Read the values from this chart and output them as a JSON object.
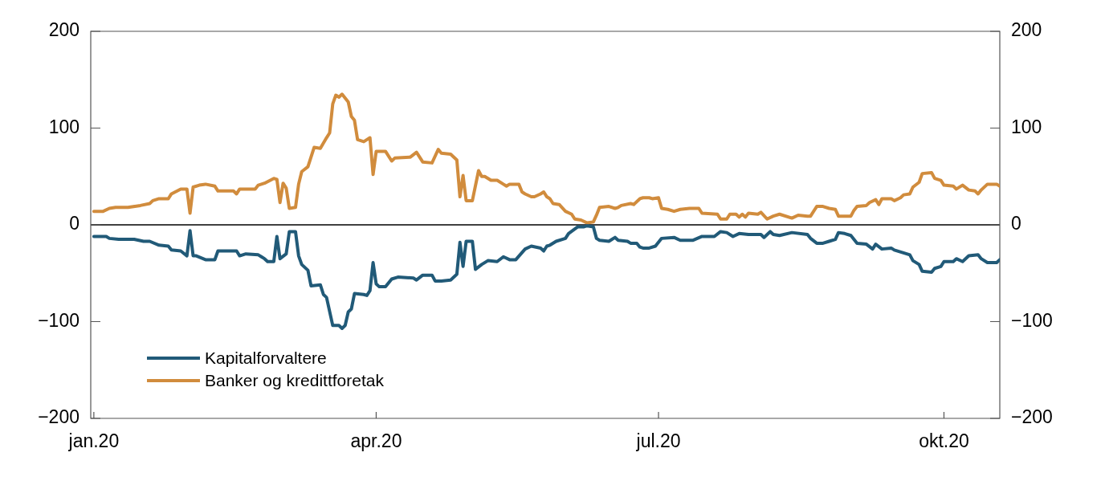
{
  "chart_data": {
    "type": "line",
    "xlim": [
      "2019-12-31",
      "2020-10-19"
    ],
    "xticks": [
      {
        "value": "2020-01-01",
        "label": "jan.20"
      },
      {
        "value": "2020-04-01",
        "label": "apr.20"
      },
      {
        "value": "2020-07-01",
        "label": "jul.20"
      },
      {
        "value": "2020-10-01",
        "label": "okt.20"
      }
    ],
    "ylim": [
      -200,
      200
    ],
    "yticks": [
      -200,
      -100,
      0,
      100,
      200
    ],
    "y2lim": [
      -200,
      200
    ],
    "y2ticks": [
      -200,
      -100,
      0,
      100,
      200
    ],
    "grid": false,
    "legend": "bottom left",
    "marker": "none",
    "line_style": "solid",
    "ref_lines": [
      {
        "axis": "y",
        "value": 0,
        "color": "#000000"
      }
    ],
    "series": [
      {
        "name": "Kapitalforvaltere",
        "color": "#215a78",
        "x": [
          "2020-01-01",
          "2020-01-05",
          "2020-01-06",
          "2020-01-09",
          "2020-01-14",
          "2020-01-17",
          "2020-01-19",
          "2020-01-22",
          "2020-01-25",
          "2020-01-26",
          "2020-01-29",
          "2020-01-31",
          "2020-02-01",
          "2020-02-02",
          "2020-02-03",
          "2020-02-06",
          "2020-02-09",
          "2020-02-10",
          "2020-02-16",
          "2020-02-17",
          "2020-02-19",
          "2020-02-23",
          "2020-02-24",
          "2020-02-25",
          "2020-02-26",
          "2020-02-28",
          "2020-02-29",
          "2020-03-01",
          "2020-03-03",
          "2020-03-04",
          "2020-03-06",
          "2020-03-07",
          "2020-03-08",
          "2020-03-10",
          "2020-03-11",
          "2020-03-14",
          "2020-03-15",
          "2020-03-16",
          "2020-03-18",
          "2020-03-20",
          "2020-03-21",
          "2020-03-22",
          "2020-03-23",
          "2020-03-24",
          "2020-03-25",
          "2020-03-28",
          "2020-03-29",
          "2020-03-30",
          "2020-03-31",
          "2020-04-01",
          "2020-04-02",
          "2020-04-04",
          "2020-04-06",
          "2020-04-08",
          "2020-04-13",
          "2020-04-14",
          "2020-04-16",
          "2020-04-19",
          "2020-04-20",
          "2020-04-22",
          "2020-04-25",
          "2020-04-27",
          "2020-04-28",
          "2020-04-29",
          "2020-04-30",
          "2020-05-02",
          "2020-05-03",
          "2020-05-05",
          "2020-05-07",
          "2020-05-10",
          "2020-05-12",
          "2020-05-14",
          "2020-05-16",
          "2020-05-19",
          "2020-05-21",
          "2020-05-24",
          "2020-05-25",
          "2020-05-26",
          "2020-05-27",
          "2020-05-29",
          "2020-06-01",
          "2020-06-02",
          "2020-06-05",
          "2020-06-07",
          "2020-06-08",
          "2020-06-10",
          "2020-06-11",
          "2020-06-12",
          "2020-06-15",
          "2020-06-17",
          "2020-06-18",
          "2020-06-21",
          "2020-06-22",
          "2020-06-24",
          "2020-06-25",
          "2020-06-26",
          "2020-06-28",
          "2020-06-30",
          "2020-07-02",
          "2020-07-06",
          "2020-07-08",
          "2020-07-12",
          "2020-07-15",
          "2020-07-19",
          "2020-07-21",
          "2020-07-23",
          "2020-07-25",
          "2020-07-27",
          "2020-07-30",
          "2020-08-03",
          "2020-08-04",
          "2020-08-06",
          "2020-08-07",
          "2020-08-09",
          "2020-08-13",
          "2020-08-18",
          "2020-08-19",
          "2020-08-21",
          "2020-08-23",
          "2020-08-25",
          "2020-08-27",
          "2020-08-28",
          "2020-08-30",
          "2020-09-01",
          "2020-09-03",
          "2020-09-06",
          "2020-09-08",
          "2020-09-09",
          "2020-09-11",
          "2020-09-14",
          "2020-09-15",
          "2020-09-19",
          "2020-09-20",
          "2020-09-21",
          "2020-09-23",
          "2020-09-24",
          "2020-09-27",
          "2020-09-28",
          "2020-09-30",
          "2020-10-01",
          "2020-10-04",
          "2020-10-05",
          "2020-10-07",
          "2020-10-09",
          "2020-10-12",
          "2020-10-13",
          "2020-10-15",
          "2020-10-18",
          "2020-10-19"
        ],
        "values": [
          -12,
          -12,
          -14,
          -15,
          -15,
          -17,
          -17,
          -21,
          -22,
          -26,
          -27,
          -32,
          -6,
          -32,
          -32,
          -36,
          -36,
          -27,
          -27,
          -32,
          -30,
          -31,
          -33,
          -35,
          -38,
          -38,
          -12,
          -35,
          -30,
          -7,
          -7,
          -32,
          -41,
          -47,
          -63,
          -62,
          -72,
          -75,
          -104,
          -104,
          -107,
          -104,
          -90,
          -87,
          -71,
          -72,
          -73,
          -68,
          -39,
          -61,
          -64,
          -64,
          -56,
          -54,
          -55,
          -57,
          -52,
          -52,
          -58,
          -58,
          -57,
          -51,
          -18,
          -43,
          -17,
          -17,
          -46,
          -41,
          -37,
          -38,
          -33,
          -36,
          -36,
          -25,
          -22,
          -24,
          -27,
          -22,
          -21,
          -17,
          -14,
          -9,
          -2,
          -2,
          -1,
          -2,
          -14,
          -16,
          -17,
          -13,
          -16,
          -17,
          -19,
          -19,
          -23,
          -24,
          -24,
          -22,
          -14,
          -13,
          -16,
          -16,
          -12,
          -12,
          -7,
          -8,
          -12,
          -9,
          -10,
          -10,
          -13,
          -7,
          -10,
          -11,
          -8,
          -10,
          -14,
          -19,
          -19,
          -17,
          -15,
          -8,
          -9,
          -11,
          -19,
          -20,
          -25,
          -20,
          -25,
          -24,
          -26,
          -30,
          -31,
          -37,
          -41,
          -48,
          -49,
          -45,
          -43,
          -38,
          -38,
          -35,
          -38,
          -32,
          -31,
          -35,
          -39,
          -39,
          -36
        ]
      },
      {
        "name": "Banker og kredittforetak",
        "color": "#d18c3d",
        "x": [
          "2020-01-01",
          "2020-01-04",
          "2020-01-06",
          "2020-01-08",
          "2020-01-12",
          "2020-01-16",
          "2020-01-19",
          "2020-01-20",
          "2020-01-22",
          "2020-01-25",
          "2020-01-26",
          "2020-01-29",
          "2020-01-31",
          "2020-02-01",
          "2020-02-02",
          "2020-02-04",
          "2020-02-06",
          "2020-02-09",
          "2020-02-10",
          "2020-02-15",
          "2020-02-16",
          "2020-02-17",
          "2020-02-22",
          "2020-02-23",
          "2020-02-25",
          "2020-02-28",
          "2020-02-29",
          "2020-03-01",
          "2020-03-02",
          "2020-03-03",
          "2020-03-04",
          "2020-03-06",
          "2020-03-07",
          "2020-03-08",
          "2020-03-10",
          "2020-03-12",
          "2020-03-14",
          "2020-03-16",
          "2020-03-17",
          "2020-03-18",
          "2020-03-19",
          "2020-03-20",
          "2020-03-21",
          "2020-03-23",
          "2020-03-24",
          "2020-03-25",
          "2020-03-26",
          "2020-03-28",
          "2020-03-30",
          "2020-03-31",
          "2020-04-01",
          "2020-04-04",
          "2020-04-06",
          "2020-04-07",
          "2020-04-12",
          "2020-04-14",
          "2020-04-16",
          "2020-04-19",
          "2020-04-21",
          "2020-04-22",
          "2020-04-25",
          "2020-04-27",
          "2020-04-28",
          "2020-04-29",
          "2020-04-30",
          "2020-05-02",
          "2020-05-04",
          "2020-05-05",
          "2020-05-06",
          "2020-05-08",
          "2020-05-10",
          "2020-05-12",
          "2020-05-13",
          "2020-05-14",
          "2020-05-17",
          "2020-05-18",
          "2020-05-19",
          "2020-05-21",
          "2020-05-22",
          "2020-05-24",
          "2020-05-25",
          "2020-05-26",
          "2020-05-27",
          "2020-05-28",
          "2020-05-30",
          "2020-06-01",
          "2020-06-03",
          "2020-06-04",
          "2020-06-06",
          "2020-06-08",
          "2020-06-10",
          "2020-06-11",
          "2020-06-12",
          "2020-06-15",
          "2020-06-17",
          "2020-06-18",
          "2020-06-19",
          "2020-06-22",
          "2020-06-23",
          "2020-06-25",
          "2020-06-26",
          "2020-06-28",
          "2020-06-29",
          "2020-07-01",
          "2020-07-02",
          "2020-07-04",
          "2020-07-06",
          "2020-07-08",
          "2020-07-11",
          "2020-07-14",
          "2020-07-15",
          "2020-07-20",
          "2020-07-21",
          "2020-07-23",
          "2020-07-24",
          "2020-07-26",
          "2020-07-27",
          "2020-07-28",
          "2020-07-29",
          "2020-07-30",
          "2020-08-02",
          "2020-08-03",
          "2020-08-05",
          "2020-08-07",
          "2020-08-09",
          "2020-08-13",
          "2020-08-15",
          "2020-08-18",
          "2020-08-19",
          "2020-08-21",
          "2020-08-23",
          "2020-08-25",
          "2020-08-27",
          "2020-08-28",
          "2020-09-01",
          "2020-09-02",
          "2020-09-03",
          "2020-09-06",
          "2020-09-07",
          "2020-09-09",
          "2020-09-10",
          "2020-09-11",
          "2020-09-14",
          "2020-09-15",
          "2020-09-17",
          "2020-09-18",
          "2020-09-20",
          "2020-09-21",
          "2020-09-23",
          "2020-09-24",
          "2020-09-27",
          "2020-09-28",
          "2020-09-30",
          "2020-10-01",
          "2020-10-04",
          "2020-10-05",
          "2020-10-07",
          "2020-10-09",
          "2020-10-11",
          "2020-10-12",
          "2020-10-13",
          "2020-10-15",
          "2020-10-18",
          "2020-10-19"
        ],
        "values": [
          14,
          14,
          17,
          18,
          18,
          20,
          22,
          25,
          27,
          27,
          32,
          37,
          37,
          12,
          39,
          41,
          42,
          40,
          35,
          35,
          32,
          37,
          37,
          41,
          43,
          48,
          47,
          23,
          43,
          38,
          17,
          18,
          42,
          55,
          60,
          80,
          79,
          90,
          95,
          125,
          134,
          132,
          135,
          127,
          112,
          108,
          88,
          86,
          90,
          52,
          76,
          76,
          66,
          69,
          70,
          75,
          65,
          64,
          78,
          74,
          73,
          67,
          29,
          51,
          25,
          25,
          56,
          50,
          50,
          46,
          46,
          42,
          40,
          42,
          42,
          34,
          32,
          29,
          29,
          32,
          34,
          29,
          27,
          22,
          21,
          14,
          11,
          6,
          5,
          2,
          3,
          10,
          18,
          19,
          17,
          18,
          20,
          22,
          21,
          27,
          28,
          28,
          27,
          28,
          17,
          16,
          14,
          16,
          17,
          17,
          12,
          11,
          6,
          6,
          11,
          11,
          8,
          11,
          8,
          12,
          11,
          13,
          6,
          9,
          11,
          7,
          10,
          9,
          9,
          19,
          19,
          17,
          16,
          9,
          9,
          15,
          19,
          20,
          23,
          26,
          21,
          27,
          27,
          25,
          28,
          31,
          32,
          39,
          44,
          53,
          54,
          48,
          46,
          41,
          40,
          37,
          41,
          36,
          35,
          32,
          36,
          42,
          42,
          40
        ]
      }
    ]
  }
}
